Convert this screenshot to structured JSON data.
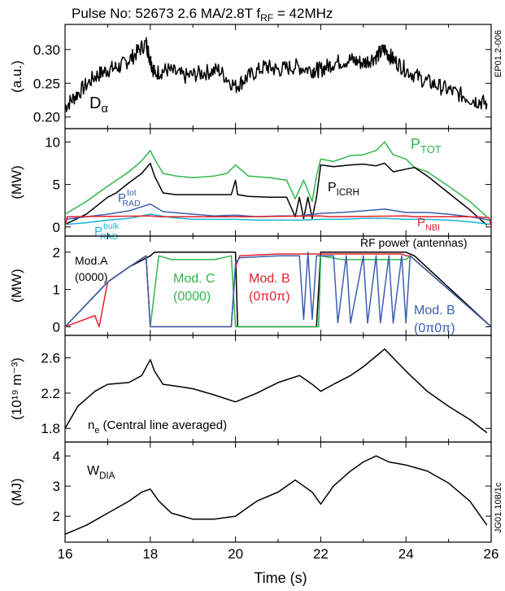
{
  "figure": {
    "header": "Pulse No: 52673     2.6 MA/2.8T    f",
    "header_sub": "RF",
    "header_tail": " = 42MHz",
    "side_id_top": "EP01.2-006",
    "side_id_bottom": "JG01.108/1c",
    "xlabel": "Time (s)"
  },
  "colors": {
    "black": "#000000",
    "green": "#2fb64a",
    "red": "#e4202a",
    "blue": "#3a5fb0",
    "cyan": "#18b4d8"
  },
  "chart_data": [
    {
      "type": "line",
      "panel": "d-alpha",
      "ylabel": "(a.u.)",
      "ylim": [
        0.19,
        0.33
      ],
      "xlim": [
        16,
        26
      ],
      "y_ticks": [
        "0.30",
        "0.25",
        "0.20"
      ],
      "y_tick_values": [
        0.3,
        0.25,
        0.2
      ],
      "annotations": [
        {
          "text": "D",
          "sub": "α",
          "color": "black"
        }
      ],
      "series": [
        {
          "color": "black",
          "noisy": 0.012,
          "x": [
            16.0,
            16.3,
            16.7,
            17.0,
            17.3,
            17.6,
            17.9,
            18.0,
            18.1,
            18.4,
            18.8,
            19.2,
            19.6,
            20.0,
            20.3,
            20.7,
            21.0,
            21.4,
            21.8,
            22.0,
            22.3,
            22.7,
            23.0,
            23.3,
            23.5,
            23.7,
            24.0,
            24.4,
            24.8,
            25.2,
            25.6,
            25.9
          ],
          "y": [
            0.215,
            0.235,
            0.26,
            0.27,
            0.275,
            0.29,
            0.31,
            0.285,
            0.265,
            0.27,
            0.26,
            0.265,
            0.27,
            0.245,
            0.26,
            0.275,
            0.27,
            0.275,
            0.27,
            0.27,
            0.28,
            0.285,
            0.28,
            0.29,
            0.3,
            0.285,
            0.27,
            0.255,
            0.245,
            0.235,
            0.225,
            0.22
          ]
        }
      ]
    },
    {
      "type": "line",
      "panel": "power",
      "ylabel": "(MW)",
      "ylim": [
        -0.5,
        11
      ],
      "xlim": [
        16,
        26
      ],
      "y_ticks": [
        "10",
        "5",
        "0"
      ],
      "y_tick_values": [
        10,
        5,
        0
      ],
      "annotations": [
        {
          "text": "P",
          "sub": "TOT",
          "color": "green"
        },
        {
          "text": "P",
          "sub": "ICRH",
          "color": "black"
        },
        {
          "text": "P",
          "sub": "RAD",
          "sup": "tot",
          "color": "blue"
        },
        {
          "text": "P",
          "sub": "RAD",
          "sup": "bulk",
          "color": "cyan"
        },
        {
          "text": "P",
          "sub": "NBI",
          "color": "red"
        }
      ],
      "series": [
        {
          "name": "P_TOT",
          "color": "green",
          "x": [
            16.0,
            16.5,
            17.0,
            17.5,
            17.8,
            18.0,
            18.1,
            18.3,
            18.6,
            19.0,
            19.5,
            19.8,
            20.0,
            20.3,
            20.8,
            21.2,
            21.4,
            21.6,
            21.8,
            21.9,
            22.0,
            22.3,
            22.7,
            23.0,
            23.3,
            23.5,
            23.7,
            24.0,
            24.2,
            24.5,
            25.0,
            25.5,
            25.9
          ],
          "y": [
            1.5,
            3.0,
            4.8,
            6.5,
            7.8,
            9.0,
            8.0,
            6.3,
            6.0,
            5.8,
            6.0,
            6.3,
            7.3,
            6.0,
            5.8,
            5.5,
            3.3,
            5.5,
            3.0,
            6.0,
            8.0,
            7.7,
            8.4,
            8.5,
            9.0,
            10.0,
            8.5,
            8.0,
            7.0,
            6.5,
            4.8,
            3.0,
            1.2
          ]
        },
        {
          "name": "P_ICRH",
          "color": "black",
          "x": [
            16.0,
            16.5,
            17.0,
            17.2,
            17.5,
            17.8,
            18.0,
            18.1,
            18.3,
            18.6,
            19.0,
            19.5,
            19.9,
            20.0,
            20.05,
            20.3,
            20.8,
            21.2,
            21.4,
            21.5,
            21.6,
            21.7,
            21.8,
            21.9,
            22.0,
            22.3,
            22.7,
            23.0,
            23.3,
            23.5,
            23.7,
            24.0,
            24.2,
            24.5,
            25.0,
            25.5,
            25.9
          ],
          "y": [
            0.3,
            1.5,
            3.5,
            4.0,
            5.2,
            6.3,
            7.5,
            6.0,
            4.0,
            3.8,
            3.8,
            3.8,
            3.8,
            5.5,
            3.8,
            3.6,
            3.5,
            3.5,
            1.2,
            3.5,
            1.0,
            3.5,
            1.0,
            3.5,
            7.3,
            7.1,
            7.3,
            7.4,
            7.2,
            7.5,
            6.5,
            6.8,
            7.0,
            6.0,
            4.0,
            2.0,
            0.2
          ]
        },
        {
          "name": "P_RAD tot",
          "color": "blue",
          "x": [
            16.0,
            16.5,
            17.0,
            17.5,
            18.0,
            18.3,
            19.0,
            19.5,
            20.0,
            20.5,
            21.0,
            21.5,
            22.0,
            22.5,
            23.0,
            23.5,
            24.0,
            24.5,
            25.0,
            25.5,
            26.0
          ],
          "y": [
            0.9,
            1.2,
            1.5,
            1.9,
            2.7,
            1.8,
            1.5,
            1.3,
            1.4,
            1.2,
            1.3,
            1.3,
            1.6,
            1.7,
            1.9,
            2.1,
            1.7,
            1.7,
            1.5,
            1.2,
            0.8
          ]
        },
        {
          "name": "P_RAD bulk",
          "color": "cyan",
          "x": [
            16.0,
            16.5,
            17.0,
            17.5,
            18.0,
            18.5,
            19.0,
            19.5,
            20.0,
            20.5,
            21.0,
            21.5,
            22.0,
            22.5,
            23.0,
            23.5,
            24.0,
            24.5,
            25.0,
            25.5,
            26.0
          ],
          "y": [
            0.3,
            0.5,
            0.8,
            1.0,
            1.5,
            1.1,
            0.9,
            0.9,
            0.9,
            0.8,
            0.8,
            0.8,
            0.9,
            0.9,
            1.0,
            1.0,
            0.9,
            0.9,
            0.8,
            0.6,
            0.3
          ]
        },
        {
          "name": "P_NBI",
          "color": "red",
          "x": [
            16.0,
            16.05,
            18.0,
            18.2,
            20.0,
            20.2,
            22.0,
            22.2,
            24.0,
            24.2,
            25.5,
            25.95,
            26.0
          ],
          "y": [
            0,
            1.2,
            1.3,
            1.2,
            1.2,
            1.2,
            1.3,
            1.2,
            1.3,
            1.2,
            1.2,
            1.1,
            0
          ]
        }
      ]
    },
    {
      "type": "line",
      "panel": "antenna-rf-power",
      "ylabel": "(MW)",
      "ylim": [
        -0.1,
        2.3
      ],
      "xlim": [
        16,
        26
      ],
      "y_ticks": [
        "2",
        "1",
        "0"
      ],
      "y_tick_values": [
        2,
        1,
        0
      ],
      "annotations": [
        {
          "text": "RF power (antennas)",
          "color": "black"
        },
        {
          "text": "Mod.A",
          "line2": "(0000)",
          "color": "black"
        },
        {
          "text": "Mod. C",
          "line2": "(0000)",
          "color": "green"
        },
        {
          "text": "Mod. B",
          "line2": "(0π0π)",
          "color": "red"
        },
        {
          "text": "Mod. B",
          "line2": "(0π0π)",
          "color": "blue"
        }
      ],
      "series": [
        {
          "name": "Mod.A",
          "color": "black",
          "x": [
            16.0,
            17.0,
            17.5,
            18.0,
            18.1,
            20.0,
            20.05,
            21.9,
            22.0,
            24.0,
            24.2,
            26.0
          ],
          "y": [
            0,
            1.2,
            1.6,
            1.9,
            2.0,
            2.0,
            0.0,
            0.0,
            2.0,
            2.0,
            1.9,
            0.0
          ]
        },
        {
          "name": "Mod. C",
          "color": "green",
          "x": [
            16.0,
            17.0,
            17.5,
            17.9,
            18.0,
            18.2,
            18.5,
            19.0,
            19.5,
            19.9,
            20.0,
            20.1,
            21.5,
            21.95,
            22.0,
            22.5,
            23.0,
            23.5,
            24.0,
            24.1,
            26.0
          ],
          "y": [
            0,
            1.2,
            1.6,
            1.9,
            0.0,
            1.9,
            1.8,
            1.8,
            1.8,
            1.9,
            0.0,
            0.0,
            0.0,
            0.0,
            1.9,
            1.8,
            1.8,
            1.8,
            1.8,
            1.9,
            0.0
          ]
        },
        {
          "name": "Mod. B (red)",
          "color": "red",
          "x": [
            16.0,
            16.7,
            16.8,
            17.0,
            17.5,
            17.9,
            18.0,
            19.9,
            20.0,
            20.1,
            21.0,
            22.0,
            23.0,
            23.9,
            24.0,
            24.1,
            26.0
          ],
          "y": [
            0,
            0.3,
            0.0,
            1.2,
            1.6,
            1.9,
            0.0,
            0.0,
            1.6,
            1.9,
            1.95,
            1.95,
            1.95,
            1.95,
            1.9,
            1.9,
            0.0
          ]
        },
        {
          "name": "Mod. B (blue)",
          "color": "blue",
          "x": [
            16.0,
            17.0,
            17.5,
            17.9,
            18.0,
            19.9,
            20.0,
            20.1,
            21.0,
            21.5,
            21.6,
            21.7,
            21.8,
            21.9,
            22.0,
            22.3,
            22.4,
            22.6,
            22.7,
            23.0,
            23.1,
            23.3,
            23.4,
            23.6,
            23.7,
            23.9,
            24.0,
            24.1,
            26.0
          ],
          "y": [
            0,
            1.2,
            1.6,
            1.9,
            0.0,
            0.0,
            1.7,
            1.85,
            1.9,
            1.9,
            0.2,
            2.0,
            0.2,
            1.9,
            1.9,
            1.9,
            0.1,
            1.9,
            0.1,
            1.9,
            0.1,
            1.9,
            0.1,
            1.9,
            0.1,
            1.9,
            0.1,
            1.9,
            0.0
          ]
        }
      ]
    },
    {
      "type": "line",
      "panel": "density",
      "ylabel": "(10¹⁹ m⁻³)",
      "ylim": [
        1.7,
        2.8
      ],
      "xlim": [
        16,
        26
      ],
      "y_ticks": [
        "2.6",
        "2.2",
        "1.8"
      ],
      "y_tick_values": [
        2.6,
        2.2,
        1.8
      ],
      "annotations": [
        {
          "text": "n",
          "sub": "e",
          "tail": " (Central line averaged)",
          "color": "black"
        }
      ],
      "series": [
        {
          "name": "n_e",
          "color": "black",
          "x": [
            16.0,
            16.3,
            16.7,
            17.0,
            17.5,
            17.8,
            18.0,
            18.1,
            18.3,
            18.6,
            19.0,
            19.5,
            20.0,
            20.5,
            21.0,
            21.5,
            21.8,
            22.0,
            22.3,
            22.7,
            23.0,
            23.3,
            23.5,
            23.8,
            24.0,
            24.5,
            25.0,
            25.5,
            25.9
          ],
          "y": [
            1.8,
            2.05,
            2.22,
            2.3,
            2.32,
            2.4,
            2.58,
            2.45,
            2.3,
            2.28,
            2.25,
            2.18,
            2.1,
            2.2,
            2.32,
            2.4,
            2.3,
            2.22,
            2.3,
            2.4,
            2.5,
            2.62,
            2.7,
            2.55,
            2.45,
            2.22,
            2.05,
            1.9,
            1.75
          ]
        }
      ]
    },
    {
      "type": "line",
      "panel": "diamagnetic-energy",
      "ylabel": "(MJ)",
      "ylim": [
        1.3,
        4.3
      ],
      "xlim": [
        16,
        26
      ],
      "y_ticks": [
        "4",
        "3",
        "2"
      ],
      "y_tick_values": [
        4,
        3,
        2
      ],
      "x_ticks": [
        "16",
        "18",
        "20",
        "22",
        "24",
        "26"
      ],
      "x_tick_values": [
        16,
        18,
        20,
        22,
        24,
        26
      ],
      "annotations": [
        {
          "text": "W",
          "sub": "DIA",
          "color": "black"
        }
      ],
      "series": [
        {
          "name": "W_DIA",
          "color": "black",
          "x": [
            16.0,
            16.5,
            17.0,
            17.5,
            17.8,
            18.0,
            18.2,
            18.5,
            19.0,
            19.5,
            20.0,
            20.5,
            21.0,
            21.4,
            21.8,
            22.0,
            22.3,
            22.7,
            23.0,
            23.3,
            23.6,
            24.0,
            24.5,
            25.0,
            25.5,
            25.9
          ],
          "y": [
            1.4,
            1.7,
            2.1,
            2.5,
            2.8,
            2.9,
            2.5,
            2.1,
            1.9,
            1.9,
            2.0,
            2.5,
            2.8,
            3.2,
            2.8,
            2.4,
            3.0,
            3.5,
            3.8,
            4.0,
            3.8,
            3.7,
            3.5,
            3.1,
            2.5,
            1.7
          ]
        }
      ]
    }
  ]
}
